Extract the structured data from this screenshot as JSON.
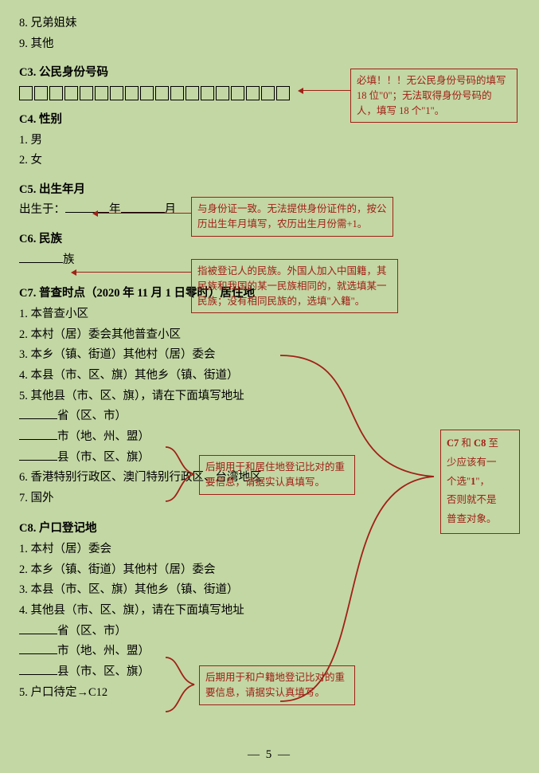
{
  "top_items": {
    "i8": "8. 兄弟姐妹",
    "i9": "9. 其他"
  },
  "c3": {
    "head": "C3. 公民身份号码",
    "box_count": 18,
    "note": "必填！！！无公民身份号码的填写 18 位\"0\"；无法取得身份号码的人，填写 18 个\"1\"。"
  },
  "c4": {
    "head": "C4. 性别",
    "o1": "1. 男",
    "o2": "2. 女"
  },
  "c5": {
    "head": "C5. 出生年月",
    "born_prefix": "出生于：",
    "year": "年",
    "month": "月",
    "note": "与身份证一致。无法提供身份证件的，按公历出生年月填写，农历出生月份需+1。"
  },
  "c6": {
    "head": "C6. 民族",
    "suffix": "族",
    "note": "指被登记人的民族。外国人加入中国籍，其民族和我国的某一民族相同的，就选填某一民族；没有相同民族的，选填\"入籍\"。"
  },
  "c7": {
    "head": "C7. 普查时点（2020 年 11 月 1 日零时）居住地",
    "o1": "1. 本普查小区",
    "o2": "2. 本村（居）委会其他普查小区",
    "o3": "3. 本乡（镇、街道）其他村（居）委会",
    "o4": "4. 本县（市、区、旗）其他乡（镇、街道）",
    "o5": "5. 其他县（市、区、旗），请在下面填写地址",
    "a1": "省（区、市）",
    "a2": "市（地、州、盟）",
    "a3": "县（市、区、旗）",
    "o6": "6. 香港特别行政区、澳门特别行政区、台湾地区",
    "o7": "7. 国外",
    "addr_note": "后期用于和居住地登记比对的重要信息，请据实认真填写。"
  },
  "c8": {
    "head": "C8. 户口登记地",
    "o1": "1. 本村（居）委会",
    "o2": "2. 本乡（镇、街道）其他村（居）委会",
    "o3": "3. 本县（市、区、旗）其他乡（镇、街道）",
    "o4": "4. 其他县（市、区、旗），请在下面填写地址",
    "a1": "省（区、市）",
    "a2": "市（地、州、盟）",
    "a3": "县（市、区、旗）",
    "o5": "5. 户口待定→C12",
    "addr_note": "后期用于和户籍地登记比对的重要信息，请据实认真填写。"
  },
  "side_note": {
    "l1_a": "C7",
    "l1_b": " 和 ",
    "l1_c": "C8",
    "l1_d": " 至",
    "l2": "少应该有一",
    "l3_a": "个选\"",
    "l3_b": "1",
    "l3_c": "\"，",
    "l4": "否则就不是",
    "l5": "普查对象。"
  },
  "page_num": "— 5 —",
  "colors": {
    "bg": "#c3d7a4",
    "note_border": "#a02017",
    "text": "#000000"
  }
}
